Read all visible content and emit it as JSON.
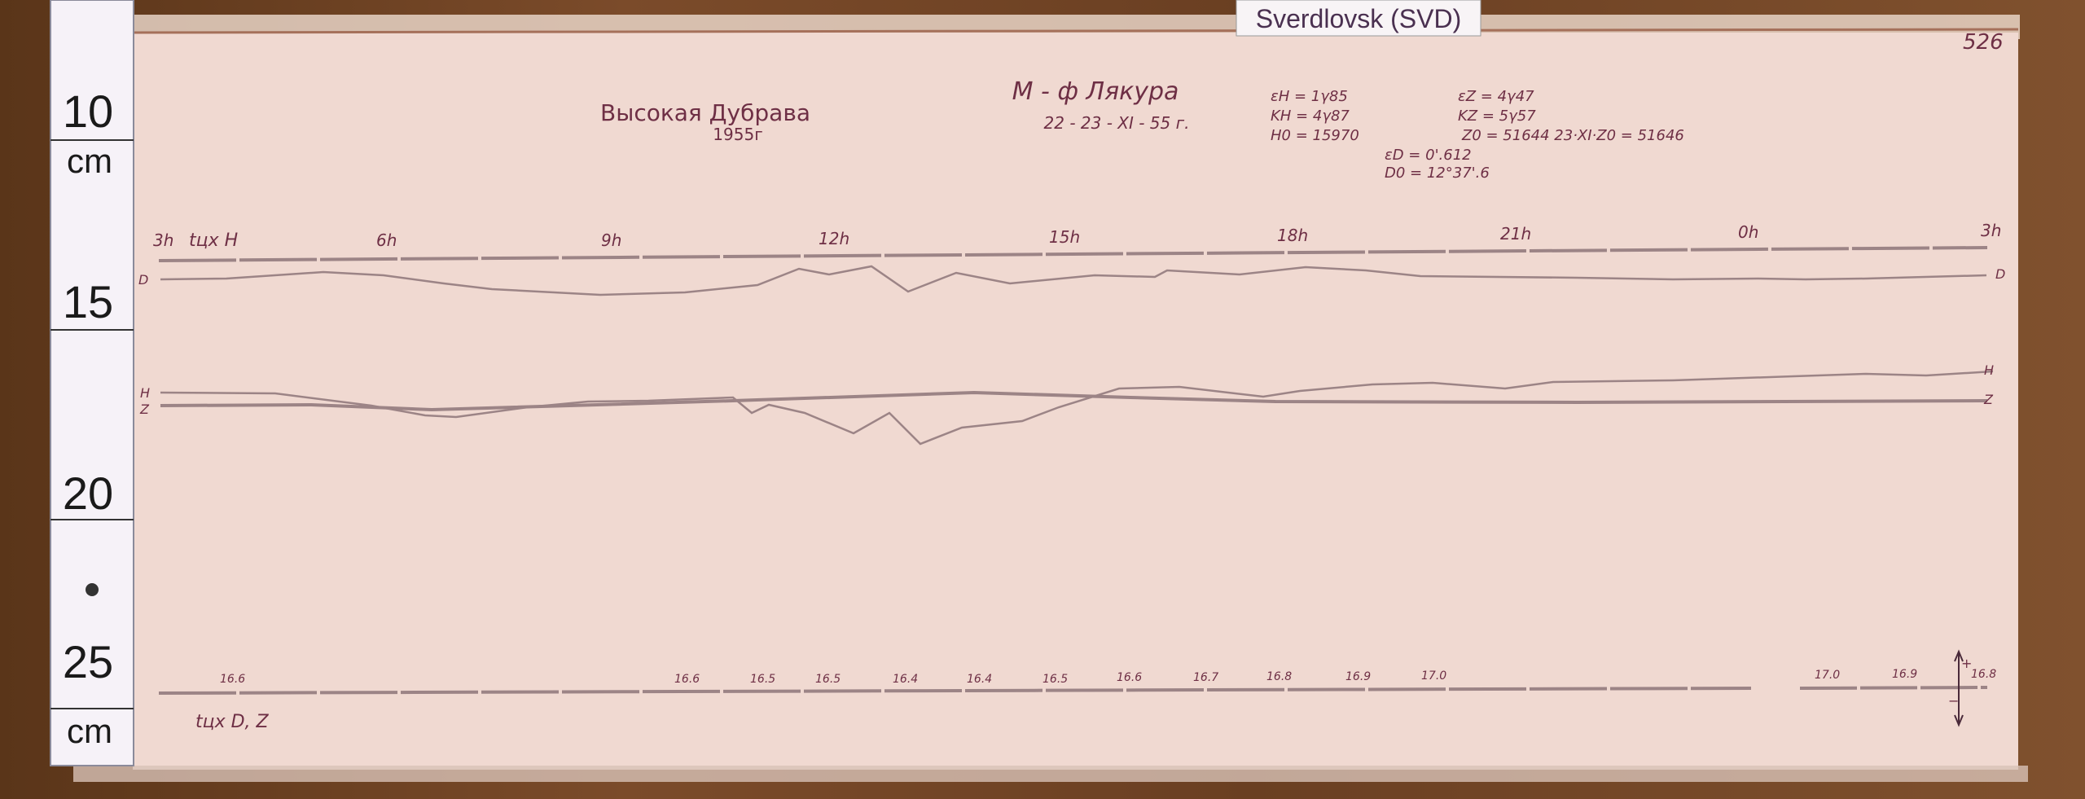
{
  "label_tag": "Sverdlovsk (SVD)",
  "sheet_number": "526",
  "ruler": {
    "marks": [
      "10",
      "cm",
      "15",
      "20",
      "25",
      "cm"
    ]
  },
  "header": {
    "station": "Высокая Дубрава",
    "year": "1955г",
    "observer": "М - ф Лякура",
    "date": "22 - 23 - XI - 55 г.",
    "eps_h": "εH = 1γ85",
    "k_h": "KH = 4γ87",
    "h0": "H0 = 15970",
    "eps_z": "εZ = 4γ47",
    "k_z": "KZ = 5γ57",
    "z0": "Z0 = 51644  23·XI·Z0 = 51646",
    "eps_d": "εD = 0'.612",
    "d0": "D0 = 12°37'.6"
  },
  "time_axis": {
    "labels": [
      "3h",
      "6h",
      "9h",
      "12h",
      "15h",
      "18h",
      "21h",
      "0h",
      "3h"
    ],
    "temp_label_top": "tцх H",
    "temp_label_bottom": "tцх D, Z"
  },
  "curve_labels": {
    "d_left": "D",
    "h_left": "H",
    "z_left": "Z",
    "d_right": "D",
    "h_right": "H",
    "z_right": "Z"
  },
  "temperature_readings": [
    "16.6",
    "16.6",
    "16.5",
    "16.5",
    "16.4",
    "16.4",
    "16.5",
    "16.6",
    "16.7",
    "16.8",
    "16.9",
    "17.0",
    "17.0",
    "16.9",
    "16.8"
  ],
  "scale_arrow": {
    "plus": "+",
    "minus": "−"
  },
  "colors": {
    "paper": "#f0d9d1",
    "ink": "#6e2f45",
    "trace": "#9c8486",
    "wood": "#6e4426"
  }
}
